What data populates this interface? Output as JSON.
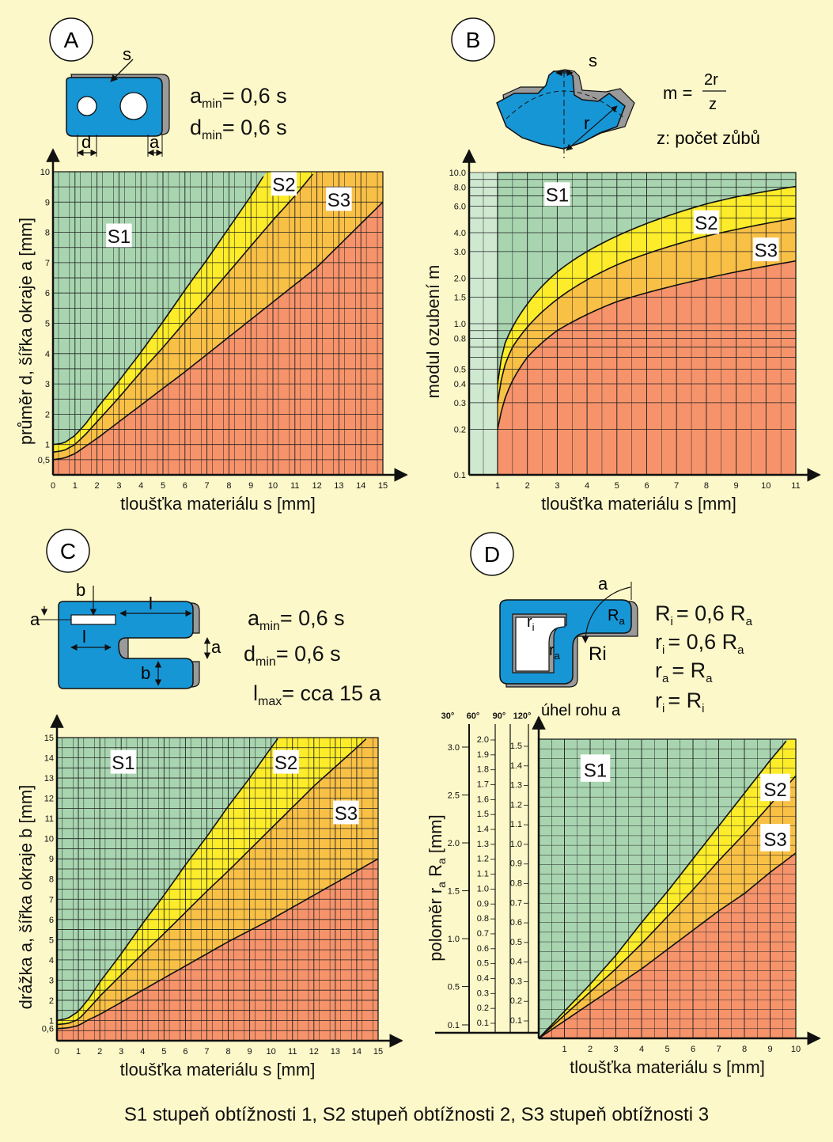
{
  "footer": "S1 stupeň obtížnosti 1,  S2 stupeň obtížnosti 2,  S3 stupeň obtížnosti 3",
  "colors": {
    "s1": "#a8d5b0",
    "s2": "#fcec29",
    "s3": "#f9c046",
    "rest": "#f6936b",
    "part": "#1796d6",
    "shadow": "#9a9a9a",
    "bg": "#fdf8c9"
  },
  "panels": {
    "A": {
      "letter": "A",
      "formula1_main": "a",
      "formula1_sub": "min",
      "formula1_rest": "= 0,6 s",
      "formula2_main": "d",
      "formula2_sub": "min",
      "formula2_rest": "= 0,6 s",
      "dim_s": "s",
      "dim_d": "d",
      "dim_a": "a"
    },
    "B": {
      "letter": "B",
      "formula_m": "m =",
      "formula_num": "2r",
      "formula_den": "z",
      "formula_z": "z: počet zůbů",
      "dim_s": "s",
      "dim_r": "r"
    },
    "C": {
      "letter": "C",
      "formula1_main": "a",
      "formula1_sub": "min",
      "formula1_rest": "= 0,6 s",
      "formula2_main": "d",
      "formula2_sub": "min",
      "formula2_rest": "= 0,6 s",
      "formula3_main": "l",
      "formula3_sub": "max",
      "formula3_rest": "= cca 15 a",
      "dim_b": "b",
      "dim_l": "l",
      "dim_a": "a"
    },
    "D": {
      "letter": "D",
      "dim_a": "a",
      "dim_Ra": "R",
      "dim_Ra_sub": "a",
      "dim_ri": "r",
      "dim_ri_sub": "i",
      "dim_ra": "r",
      "dim_ra_sub": "a",
      "dim_Ri": "Ri",
      "f1": "R",
      "f1s": "i",
      "f1r": "= 0,6 R",
      "f1rs": "a",
      "f2": "r",
      "f2s": "i",
      "f2r": "= 0,6 R",
      "f2rs": "a",
      "f3": "r",
      "f3s": "a",
      "f3r": "= R",
      "f3rs": "a",
      "f4": "r",
      "f4s": "i",
      "f4r": "= R",
      "f4rs": "i",
      "angle_title": "úhel rohu a"
    }
  },
  "chart_data": [
    {
      "id": "A",
      "type": "area",
      "xlabel": "tloušťka materiálu s [mm]",
      "ylabel": "průměr d, šířka okraje a [mm]",
      "xlim": [
        0,
        15
      ],
      "ylim": [
        0,
        10
      ],
      "xticks": [
        0,
        1,
        2,
        3,
        4,
        5,
        6,
        7,
        8,
        9,
        10,
        11,
        12,
        13,
        14,
        15
      ],
      "yticks": [
        {
          "v": 0.5,
          "t": "0,5"
        },
        {
          "v": 1,
          "t": "1"
        },
        {
          "v": 2,
          "t": "2"
        },
        {
          "v": 3,
          "t": "3"
        },
        {
          "v": 4,
          "t": "4"
        },
        {
          "v": 5,
          "t": "5"
        },
        {
          "v": 6,
          "t": "6"
        },
        {
          "v": 7,
          "t": "7"
        },
        {
          "v": 8,
          "t": "8"
        },
        {
          "v": 9,
          "t": "9"
        },
        {
          "v": 10,
          "t": "10"
        }
      ],
      "zones": [
        "S1",
        "S2",
        "S3"
      ],
      "boundaries": [
        {
          "name": "S1/S2",
          "points": [
            [
              0,
              1
            ],
            [
              0.5,
              1.05
            ],
            [
              1,
              1.3
            ],
            [
              1.5,
              1.7
            ],
            [
              2,
              2.2
            ],
            [
              3,
              3.1
            ],
            [
              4,
              4.05
            ],
            [
              5,
              5.05
            ],
            [
              6,
              6.1
            ],
            [
              7,
              7.1
            ],
            [
              8,
              8.15
            ],
            [
              9,
              9.2
            ],
            [
              9.7,
              10
            ]
          ]
        },
        {
          "name": "S2/S3",
          "points": [
            [
              0,
              0.75
            ],
            [
              0.5,
              0.8
            ],
            [
              1,
              1.0
            ],
            [
              1.5,
              1.35
            ],
            [
              2,
              1.75
            ],
            [
              3,
              2.55
            ],
            [
              4,
              3.4
            ],
            [
              5,
              4.2
            ],
            [
              6,
              5.05
            ],
            [
              7,
              5.85
            ],
            [
              8,
              6.7
            ],
            [
              9,
              7.55
            ],
            [
              10,
              8.4
            ],
            [
              11,
              9.2
            ],
            [
              11.9,
              10
            ]
          ]
        },
        {
          "name": "S3/rest",
          "points": [
            [
              0,
              0.5
            ],
            [
              0.5,
              0.55
            ],
            [
              1,
              0.7
            ],
            [
              1.5,
              0.95
            ],
            [
              2,
              1.2
            ],
            [
              3,
              1.75
            ],
            [
              4,
              2.3
            ],
            [
              5,
              2.85
            ],
            [
              6,
              3.4
            ],
            [
              8,
              4.55
            ],
            [
              10,
              5.7
            ],
            [
              12,
              6.85
            ],
            [
              15,
              9.0
            ]
          ]
        }
      ],
      "labels": [
        {
          "t": "S1",
          "x": 3,
          "y": 7.9
        },
        {
          "t": "S2",
          "x": 10.5,
          "y": 9.6
        },
        {
          "t": "S3",
          "x": 13,
          "y": 9.1
        }
      ]
    },
    {
      "id": "B",
      "type": "area",
      "yscale": "log",
      "xlabel": "tloušťka materiálu s [mm]",
      "ylabel": "modul ozubení m",
      "xlim": [
        0,
        11
      ],
      "ylim": [
        0.1,
        10
      ],
      "xticks": [
        1,
        2,
        3,
        4,
        5,
        6,
        7,
        8,
        9,
        10,
        11
      ],
      "yticks": [
        {
          "v": 0.1,
          "t": "0.1"
        },
        {
          "v": 0.2,
          "t": "0.2"
        },
        {
          "v": 0.3,
          "t": "0.3"
        },
        {
          "v": 0.4,
          "t": "0.4"
        },
        {
          "v": 0.5,
          "t": "0.5"
        },
        {
          "v": 0.8,
          "t": "0.8"
        },
        {
          "v": 1.0,
          "t": "1.0"
        },
        {
          "v": 1.5,
          "t": "1.5"
        },
        {
          "v": 2.0,
          "t": "2.0"
        },
        {
          "v": 3.0,
          "t": "3.0"
        },
        {
          "v": 4.0,
          "t": "4.0"
        },
        {
          "v": 6.0,
          "t": "6.0"
        },
        {
          "v": 8.0,
          "t": "8.0"
        },
        {
          "v": 10.0,
          "t": "10.0"
        }
      ],
      "zones": [
        "S1",
        "S2",
        "S3"
      ],
      "boundaries": [
        {
          "name": "S1/S2",
          "points": [
            [
              1,
              0.4
            ],
            [
              1.2,
              0.7
            ],
            [
              1.5,
              0.95
            ],
            [
              2,
              1.35
            ],
            [
              3,
              2.2
            ],
            [
              4,
              3.0
            ],
            [
              5,
              3.8
            ],
            [
              6,
              4.6
            ],
            [
              7,
              5.4
            ],
            [
              8,
              6.2
            ],
            [
              9,
              6.9
            ],
            [
              10,
              7.5
            ],
            [
              11,
              8.1
            ]
          ]
        },
        {
          "name": "S2/S3",
          "points": [
            [
              1,
              0.3
            ],
            [
              1.2,
              0.5
            ],
            [
              1.5,
              0.7
            ],
            [
              2,
              0.95
            ],
            [
              3,
              1.45
            ],
            [
              4,
              1.95
            ],
            [
              5,
              2.45
            ],
            [
              6,
              2.9
            ],
            [
              7,
              3.35
            ],
            [
              8,
              3.8
            ],
            [
              9,
              4.2
            ],
            [
              10,
              4.6
            ],
            [
              11,
              5.0
            ]
          ]
        },
        {
          "name": "S3/rest",
          "points": [
            [
              1,
              0.2
            ],
            [
              1.2,
              0.3
            ],
            [
              1.5,
              0.42
            ],
            [
              2,
              0.6
            ],
            [
              3,
              0.9
            ],
            [
              4,
              1.15
            ],
            [
              5,
              1.4
            ],
            [
              6,
              1.6
            ],
            [
              7,
              1.8
            ],
            [
              8,
              2.0
            ],
            [
              9,
              2.2
            ],
            [
              10,
              2.4
            ],
            [
              11,
              2.6
            ]
          ]
        }
      ],
      "labels": [
        {
          "t": "S1",
          "x": 3,
          "y": 7.2
        },
        {
          "t": "S2",
          "x": 8,
          "y": 4.7
        },
        {
          "t": "S3",
          "x": 10,
          "y": 3.1
        }
      ]
    },
    {
      "id": "C",
      "type": "area",
      "xlabel": "tloušťka materiálu s [mm]",
      "ylabel": "drážka a, šířka okraje b [mm]",
      "xlim": [
        0,
        15
      ],
      "ylim": [
        0,
        15
      ],
      "xticks": [
        0,
        1,
        2,
        3,
        4,
        5,
        6,
        7,
        8,
        9,
        10,
        11,
        12,
        13,
        14,
        15
      ],
      "yticks": [
        {
          "v": 0.6,
          "t": "0,6"
        },
        {
          "v": 1,
          "t": "1"
        },
        {
          "v": 2,
          "t": "2"
        },
        {
          "v": 3,
          "t": "3"
        },
        {
          "v": 4,
          "t": "4"
        },
        {
          "v": 5,
          "t": "5"
        },
        {
          "v": 6,
          "t": "6"
        },
        {
          "v": 7,
          "t": "7"
        },
        {
          "v": 8,
          "t": "8"
        },
        {
          "v": 9,
          "t": "9"
        },
        {
          "v": 10,
          "t": "10"
        },
        {
          "v": 11,
          "t": "11"
        },
        {
          "v": 12,
          "t": "12"
        },
        {
          "v": 13,
          "t": "13"
        },
        {
          "v": 14,
          "t": "14"
        },
        {
          "v": 15,
          "t": "15"
        }
      ],
      "zones": [
        "S1",
        "S2",
        "S3"
      ],
      "boundaries": [
        {
          "name": "S1/S2",
          "points": [
            [
              0,
              1
            ],
            [
              0.5,
              1.1
            ],
            [
              1,
              1.45
            ],
            [
              1.5,
              2.1
            ],
            [
              2,
              2.9
            ],
            [
              3,
              4.3
            ],
            [
              4,
              5.8
            ],
            [
              5,
              7.2
            ],
            [
              6,
              8.7
            ],
            [
              7,
              10.1
            ],
            [
              8,
              11.6
            ],
            [
              9,
              13.0
            ],
            [
              10,
              14.5
            ],
            [
              10.35,
              15
            ]
          ]
        },
        {
          "name": "S2/S3",
          "points": [
            [
              0,
              0.8
            ],
            [
              0.5,
              0.85
            ],
            [
              1,
              1.05
            ],
            [
              1.5,
              1.6
            ],
            [
              2,
              2.2
            ],
            [
              3,
              3.25
            ],
            [
              4,
              4.3
            ],
            [
              5,
              5.3
            ],
            [
              6,
              6.35
            ],
            [
              7,
              7.4
            ],
            [
              8,
              8.4
            ],
            [
              10,
              10.5
            ],
            [
              12,
              12.6
            ],
            [
              14,
              14.5
            ],
            [
              14.5,
              15
            ]
          ]
        },
        {
          "name": "S3/rest",
          "points": [
            [
              0,
              0.6
            ],
            [
              0.5,
              0.63
            ],
            [
              1,
              0.75
            ],
            [
              1.5,
              1.05
            ],
            [
              2,
              1.3
            ],
            [
              3,
              1.9
            ],
            [
              4,
              2.5
            ],
            [
              5,
              3.1
            ],
            [
              6,
              3.7
            ],
            [
              8,
              4.9
            ],
            [
              10,
              6.0
            ],
            [
              12,
              7.2
            ],
            [
              15,
              9.0
            ]
          ]
        }
      ],
      "labels": [
        {
          "t": "S1",
          "x": 3.1,
          "y": 13.8
        },
        {
          "t": "S2",
          "x": 10.7,
          "y": 13.8
        },
        {
          "t": "S3",
          "x": 13.5,
          "y": 11.3
        }
      ]
    },
    {
      "id": "D",
      "type": "area",
      "xlabel": "tloušťka materiálu s [mm]",
      "ylabel": "poloměr r",
      "ylabel_sub1": "a",
      "ylabel_mid": " R",
      "ylabel_sub2": "a",
      "ylabel_end": " [mm]",
      "xlim": [
        0,
        10
      ],
      "ylim": [
        0,
        1.55
      ],
      "xticks": [
        1,
        2,
        3,
        4,
        5,
        6,
        7,
        8,
        9,
        10
      ],
      "angle_heads": [
        "30°",
        "60°",
        "90°",
        "120°"
      ],
      "scale_30": [
        {
          "v": 0.1,
          "t": "0.1"
        },
        {
          "v": 0.5,
          "t": "0.5"
        },
        {
          "v": 1.0,
          "t": "1.0"
        },
        {
          "v": 1.5,
          "t": "1.5"
        },
        {
          "v": 2.0,
          "t": "2.0"
        },
        {
          "v": 2.5,
          "t": "2.5"
        },
        {
          "v": 3.0,
          "t": "3.0"
        }
      ],
      "scale_60": [
        "0.1",
        "0.2",
        "0.3",
        "0.4",
        "0.5",
        "0.6",
        "0.7",
        "0.8",
        "0.9",
        "1.0",
        "1.1",
        "1.2",
        "1.3",
        "1.4",
        "1.5",
        "1.6",
        "1.7",
        "1.8",
        "1.9",
        "2.0"
      ],
      "scale_120": [
        "0.1",
        "0.2",
        "0.3",
        "0.4",
        "0.5",
        "0.6",
        "0.7",
        "0.8",
        "0.9",
        "1.0",
        "1.1",
        "1.2",
        "1.3",
        "1.4",
        "1.5"
      ],
      "zones": [
        "S1",
        "S2",
        "S3"
      ],
      "boundaries": [
        {
          "name": "S1/S2",
          "points": [
            [
              0,
              0
            ],
            [
              1,
              0.14
            ],
            [
              2,
              0.28
            ],
            [
              3,
              0.43
            ],
            [
              4,
              0.6
            ],
            [
              5,
              0.76
            ],
            [
              6,
              0.93
            ],
            [
              7,
              1.1
            ],
            [
              8,
              1.27
            ],
            [
              9,
              1.44
            ],
            [
              10,
              1.6
            ]
          ]
        },
        {
          "name": "S2/S3",
          "points": [
            [
              0,
              0
            ],
            [
              1,
              0.12
            ],
            [
              2,
              0.24
            ],
            [
              3,
              0.36
            ],
            [
              4,
              0.49
            ],
            [
              5,
              0.63
            ],
            [
              6,
              0.77
            ],
            [
              7,
              0.92
            ],
            [
              8,
              1.06
            ],
            [
              9,
              1.21
            ],
            [
              10,
              1.36
            ]
          ]
        },
        {
          "name": "S3/rest",
          "points": [
            [
              0,
              0
            ],
            [
              1,
              0.09
            ],
            [
              2,
              0.18
            ],
            [
              3,
              0.27
            ],
            [
              4,
              0.36
            ],
            [
              5,
              0.46
            ],
            [
              6,
              0.56
            ],
            [
              7,
              0.66
            ],
            [
              8,
              0.75
            ],
            [
              9,
              0.86
            ],
            [
              10,
              0.96
            ]
          ]
        }
      ],
      "labels": [
        {
          "t": "S1",
          "x": 2.2,
          "y": 1.4
        },
        {
          "t": "S2",
          "x": 9.2,
          "y": 1.3
        },
        {
          "t": "S3",
          "x": 9.2,
          "y": 1.04
        }
      ]
    }
  ]
}
